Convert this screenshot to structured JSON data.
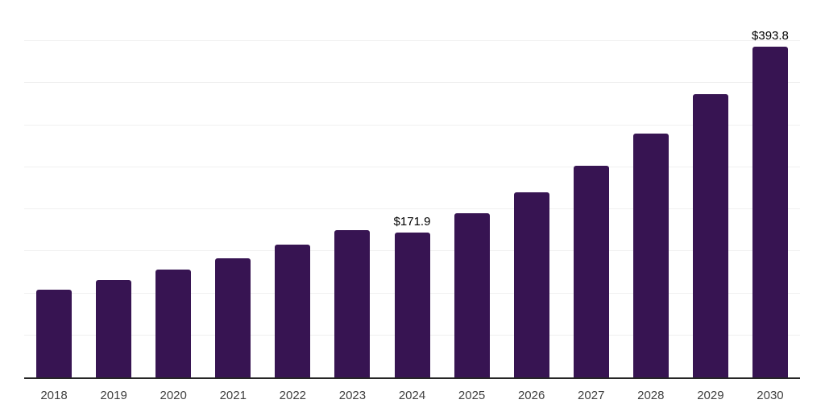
{
  "chart_data": {
    "type": "bar",
    "title": "",
    "xlabel": "",
    "ylabel": "",
    "categories": [
      "2018",
      "2019",
      "2020",
      "2021",
      "2022",
      "2023",
      "2024",
      "2025",
      "2026",
      "2027",
      "2028",
      "2029",
      "2030"
    ],
    "values": [
      104,
      116,
      128,
      142,
      158,
      175,
      171.9,
      195,
      220,
      252,
      290,
      337,
      393.8
    ],
    "data_labels": [
      "",
      "",
      "",
      "",
      "",
      "",
      "$171.9",
      "",
      "",
      "",
      "",
      "",
      "$393.8"
    ],
    "ylim": [
      0,
      450
    ],
    "gridline_step": 50,
    "grid": "horizontal",
    "y_tick_labels_visible": false,
    "legend": "none",
    "colors": {
      "bar_fill": "#371452",
      "axis_line": "#262626",
      "gridline": "#f0f0f0",
      "tick_label": "#404040",
      "data_label": "#000000",
      "background": "#ffffff"
    }
  }
}
